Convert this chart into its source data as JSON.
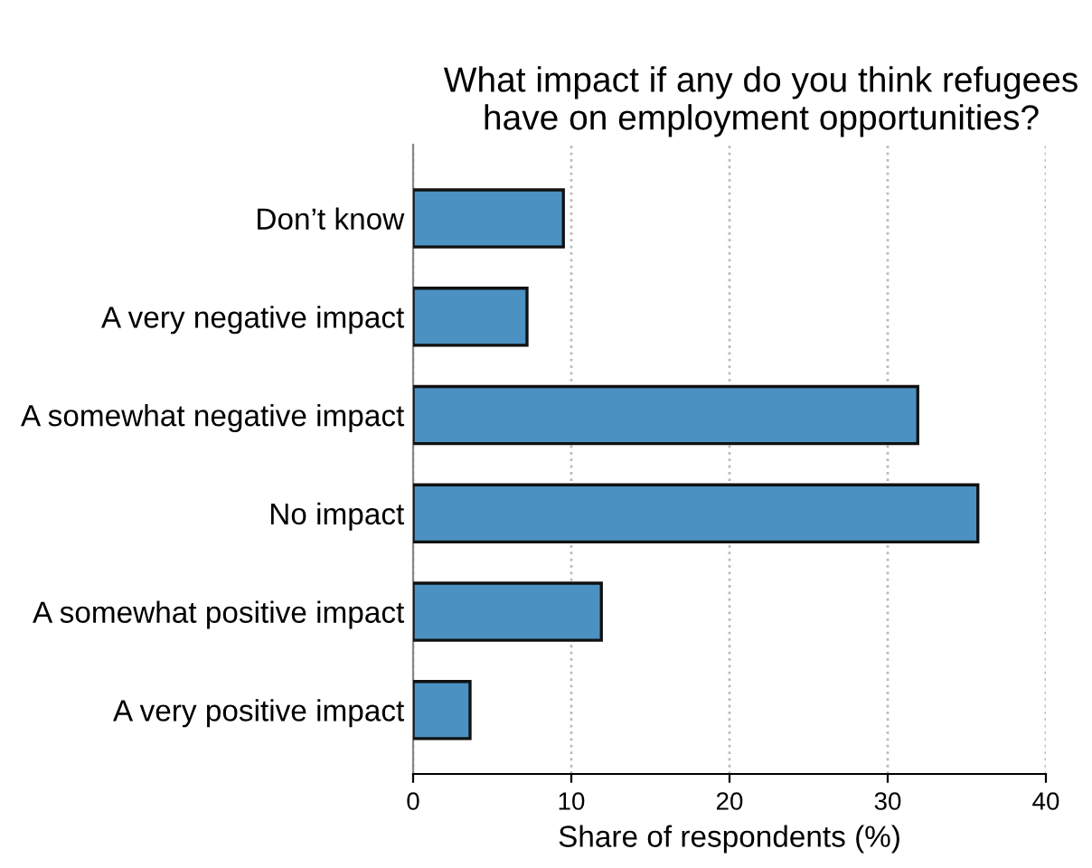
{
  "chart_data": {
    "type": "bar",
    "orientation": "horizontal",
    "title": "What impact if any do you think refugees\nhave on employment opportunities?",
    "xlabel": "Share of respondents (%)",
    "categories": [
      "Don’t know",
      "A very negative impact",
      "A somewhat negative impact",
      "No impact",
      "A somewhat positive impact",
      "A very positive impact"
    ],
    "values": [
      9.5,
      7.2,
      31.9,
      35.7,
      11.9,
      3.6
    ],
    "color": "#4b91c2",
    "xlim": [
      0,
      40
    ],
    "xticks": [
      0,
      10,
      20,
      30,
      40
    ],
    "grid": "x"
  }
}
